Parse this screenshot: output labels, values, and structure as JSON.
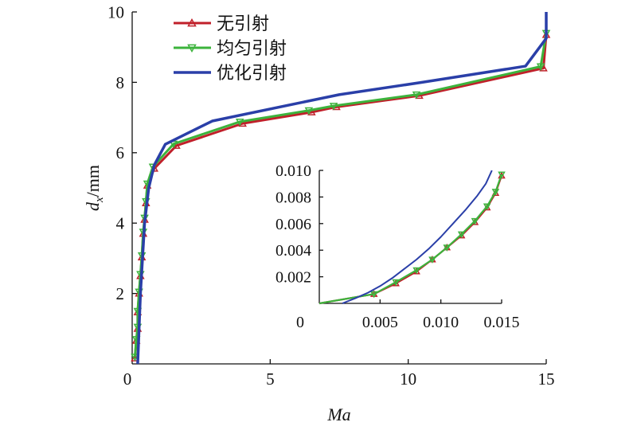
{
  "chart_data": [
    {
      "type": "line",
      "title": "",
      "xlabel": "Ma",
      "ylabel_main": "d",
      "ylabel_sub": "x",
      "ylabel_unit": "/mm",
      "xlim": [
        0,
        15
      ],
      "ylim": [
        0,
        10
      ],
      "xticks": [
        0,
        5,
        10,
        15
      ],
      "xtick_labels": [
        "0",
        "5",
        "10",
        "15"
      ],
      "yticks": [
        2,
        4,
        6,
        8,
        10
      ],
      "ytick_labels": [
        "2",
        "4",
        "6",
        "8",
        "10"
      ],
      "grid": false,
      "legend_position": "top-left",
      "series": [
        {
          "name": "无引射",
          "color": "#c0202a",
          "marker": "triangle-up",
          "x": [
            0.1,
            0.15,
            0.2,
            0.2,
            0.25,
            0.3,
            0.35,
            0.4,
            0.45,
            0.5,
            0.55,
            0.8,
            1.6,
            4.0,
            6.5,
            7.4,
            10.4,
            14.9,
            15.0
          ],
          "y": [
            0.16,
            0.66,
            1.0,
            1.47,
            2.0,
            2.5,
            3.03,
            3.7,
            4.1,
            4.57,
            5.07,
            5.55,
            6.2,
            6.83,
            7.15,
            7.3,
            7.62,
            8.4,
            9.35
          ]
        },
        {
          "name": "均匀引射",
          "color": "#3cb33c",
          "marker": "triangle-down",
          "x": [
            0.1,
            0.15,
            0.2,
            0.2,
            0.25,
            0.3,
            0.35,
            0.4,
            0.45,
            0.5,
            0.55,
            0.75,
            1.5,
            3.9,
            6.4,
            7.3,
            10.3,
            14.8,
            15.0
          ],
          "y": [
            0.2,
            0.7,
            1.05,
            1.5,
            2.05,
            2.55,
            3.08,
            3.75,
            4.15,
            4.62,
            5.12,
            5.6,
            6.25,
            6.88,
            7.2,
            7.33,
            7.65,
            8.45,
            9.4
          ]
        },
        {
          "name": "优化引射",
          "color": "#2a3fa8",
          "marker": "none",
          "x": [
            0.2,
            0.3,
            0.45,
            0.6,
            0.8,
            1.2,
            2.9,
            7.5,
            10.5,
            14.25,
            15.0,
            15.0
          ],
          "y": [
            0.0,
            2.0,
            4.0,
            5.0,
            5.65,
            6.24,
            6.9,
            7.65,
            8.0,
            8.46,
            9.25,
            10.0
          ]
        }
      ]
    },
    {
      "type": "line",
      "title": "inset",
      "xlim": [
        0,
        0.015
      ],
      "ylim": [
        0,
        0.01
      ],
      "xticks": [
        0,
        0.005,
        0.01,
        0.015
      ],
      "xtick_labels": [
        "0",
        "0.005",
        "0.010",
        "0.015"
      ],
      "yticks": [
        0.002,
        0.004,
        0.006,
        0.008,
        0.01
      ],
      "ytick_labels": [
        "0.002",
        "0.004",
        "0.006",
        "0.008",
        "0.010"
      ],
      "series": [
        {
          "name": "无引射",
          "color": "#c0202a",
          "marker": "triangle-up",
          "x": [
            0.0,
            0.0045,
            0.0063,
            0.008,
            0.0093,
            0.0105,
            0.0117,
            0.0128,
            0.0138,
            0.0145,
            0.015
          ],
          "y": [
            0.0,
            0.0007,
            0.0015,
            0.0024,
            0.0033,
            0.0042,
            0.0051,
            0.0061,
            0.0072,
            0.0083,
            0.0096
          ]
        },
        {
          "name": "均匀引射",
          "color": "#3cb33c",
          "marker": "triangle-down",
          "x": [
            0.0,
            0.0045,
            0.0063,
            0.008,
            0.0093,
            0.0105,
            0.0117,
            0.0128,
            0.0138,
            0.0145,
            0.015
          ],
          "y": [
            0.0,
            0.0007,
            0.0016,
            0.0025,
            0.0033,
            0.0042,
            0.0052,
            0.0062,
            0.0073,
            0.0084,
            0.0097
          ]
        },
        {
          "name": "优化引射",
          "color": "#2a3fa8",
          "marker": "none",
          "x": [
            0.0019,
            0.003,
            0.004,
            0.005,
            0.006,
            0.007,
            0.008,
            0.009,
            0.01,
            0.011,
            0.012,
            0.013,
            0.0137,
            0.0142
          ],
          "y": [
            0.0,
            0.0004,
            0.0008,
            0.0013,
            0.0019,
            0.0026,
            0.0033,
            0.0041,
            0.005,
            0.006,
            0.007,
            0.0081,
            0.009,
            0.01
          ]
        }
      ]
    }
  ]
}
